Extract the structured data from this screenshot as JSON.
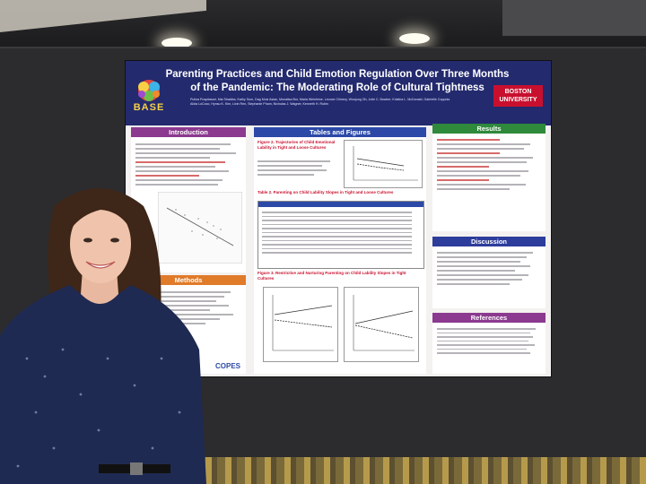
{
  "poster": {
    "title_line1": "Parenting Practices and Child Emotion Regulation Over Three Months",
    "title_line2": "of the Pandemic: The Moderating Role of Cultural Tightness",
    "authors_line1": "Pulina Puspitasari, Mia Shakiba, Kathy Sum, Dag Muiz Aslan, Monalisa Bor, Maria Weinhime, Leonce Chinery, Woojung Oh, Julie C. Bowker, Kristina L. McDonald, Gabrielle Coppola",
    "authors_line2": "Alida LoCoco, Hynsu K. Kim, Lixin Ren, Stephanie Pham, Nicholas J. Wagner, Kenneth H. Rubin",
    "base_logo_text": "BASE",
    "institution_logo_line1": "BOSTON",
    "institution_logo_line2": "UNIVERSITY",
    "introduction_heading": "Introduction",
    "methods_heading": "Methods",
    "tables_heading": "Tables and Figures",
    "figure2_title": "Figure 2. Trajectories of Child Emotional Lability in Tight and Loose Cultures",
    "table2_title": "Table 2. Parenting on Child Lability Slopes in Tight and Loose Cultures",
    "figure3_title": "Figure 3. Restrictive and Nurturing Parenting on Child Lability Slopes in Tight Cultures",
    "results_heading": "Results",
    "discussion_heading": "Discussion",
    "references_heading": "References",
    "ecoes_logo_text": "COPES"
  },
  "colors": {
    "header_bg": "#232a6e",
    "intro_purple": "#8b3a8f",
    "tables_blue": "#2c49a8",
    "methods_orange": "#e07b2a",
    "results_green": "#2f8a3c",
    "institution_red": "#c8102e"
  }
}
